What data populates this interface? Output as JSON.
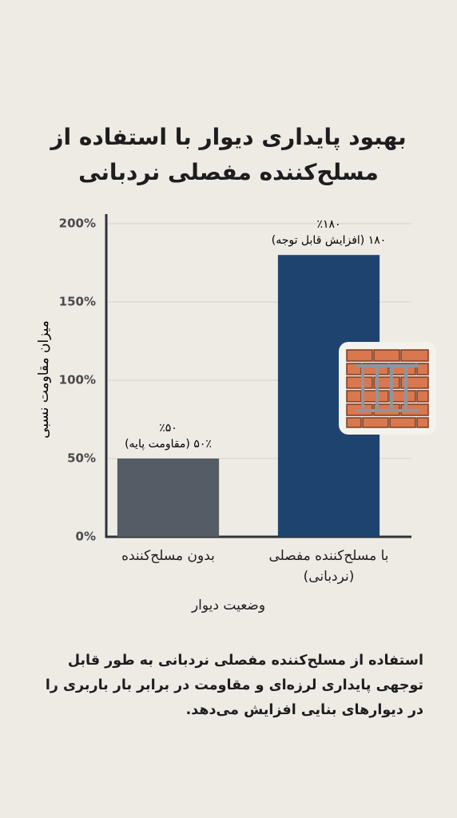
{
  "chart_data": {
    "type": "bar",
    "title": "بهبود پایداری دیوار با استفاده از مسلح‌کننده مفصلی نردبانی",
    "y_label": "میزان مقاومت نسبی",
    "x_label": "وضعیت دیوار",
    "categories": [
      "بدون مسلح‌کننده",
      "با مسلح‌کننده مفصلی (نردبانی)"
    ],
    "values": [
      50,
      180
    ],
    "value_labels": [
      "٪۵۰",
      "٪۱۸۰"
    ],
    "annotations": [
      "۵۰٪ (مقاومت پایه)",
      "۱۸۰ (افزایش قابل توجه)"
    ],
    "colors": [
      "#555c66",
      "#1f436f"
    ],
    "ylim": [
      0,
      200
    ],
    "yticks": [
      {
        "value": 0,
        "label": "0%"
      },
      {
        "value": 50,
        "label": "50%"
      },
      {
        "value": 100,
        "label": "100%"
      },
      {
        "value": 150,
        "label": "150%"
      },
      {
        "value": 200,
        "label": "200%"
      }
    ],
    "grid": true
  },
  "caption": "استفاده از مسلح‌کننده مفصلی نردبانی به طور قابل توجهی پایداری لرزه‌ای و مقاومت در برابر بار باربری را در دیوارهای بنایی افزایش می‌دهد."
}
